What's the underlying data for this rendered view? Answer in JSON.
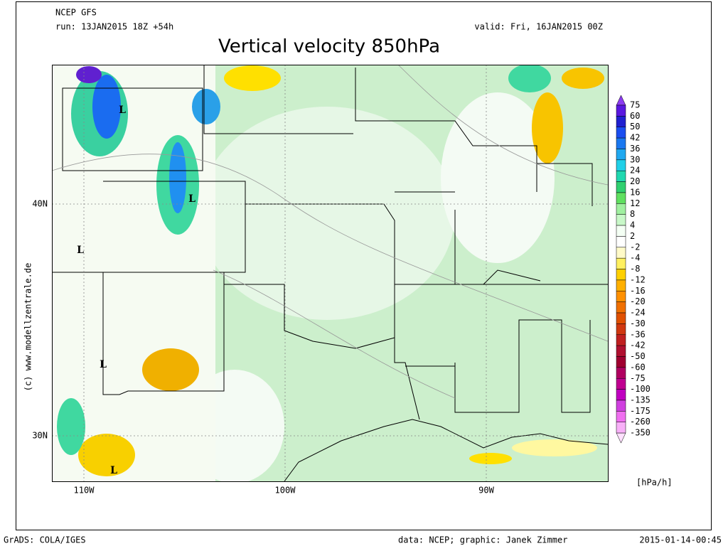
{
  "header": {
    "model": "NCEP GFS",
    "run": "run: 13JAN2015 18Z +54h",
    "valid": "valid: Fri, 16JAN2015 00Z",
    "title": "Vertical velocity 850hPa"
  },
  "map": {
    "lat_labels": [
      "40N",
      "30N"
    ],
    "lon_labels": [
      "110W",
      "100W",
      "90W"
    ],
    "lows": [
      "L",
      "L",
      "L",
      "L",
      "L"
    ],
    "credit": "(c) www.modellzentrale.de"
  },
  "colorbar": {
    "labels": [
      "75",
      "60",
      "50",
      "42",
      "36",
      "30",
      "24",
      "20",
      "16",
      "12",
      "8",
      "4",
      "2",
      "-2",
      "-4",
      "-8",
      "-12",
      "-16",
      "-20",
      "-24",
      "-30",
      "-36",
      "-42",
      "-50",
      "-60",
      "-75",
      "-100",
      "-135",
      "-175",
      "-260",
      "-350"
    ],
    "unit": "[hPa/h]"
  },
  "footer": {
    "software": "GrADS: COLA/IGES",
    "source": "data: NCEP; graphic: Janek Zimmer",
    "timestamp": "2015-01-14-00:45"
  }
}
